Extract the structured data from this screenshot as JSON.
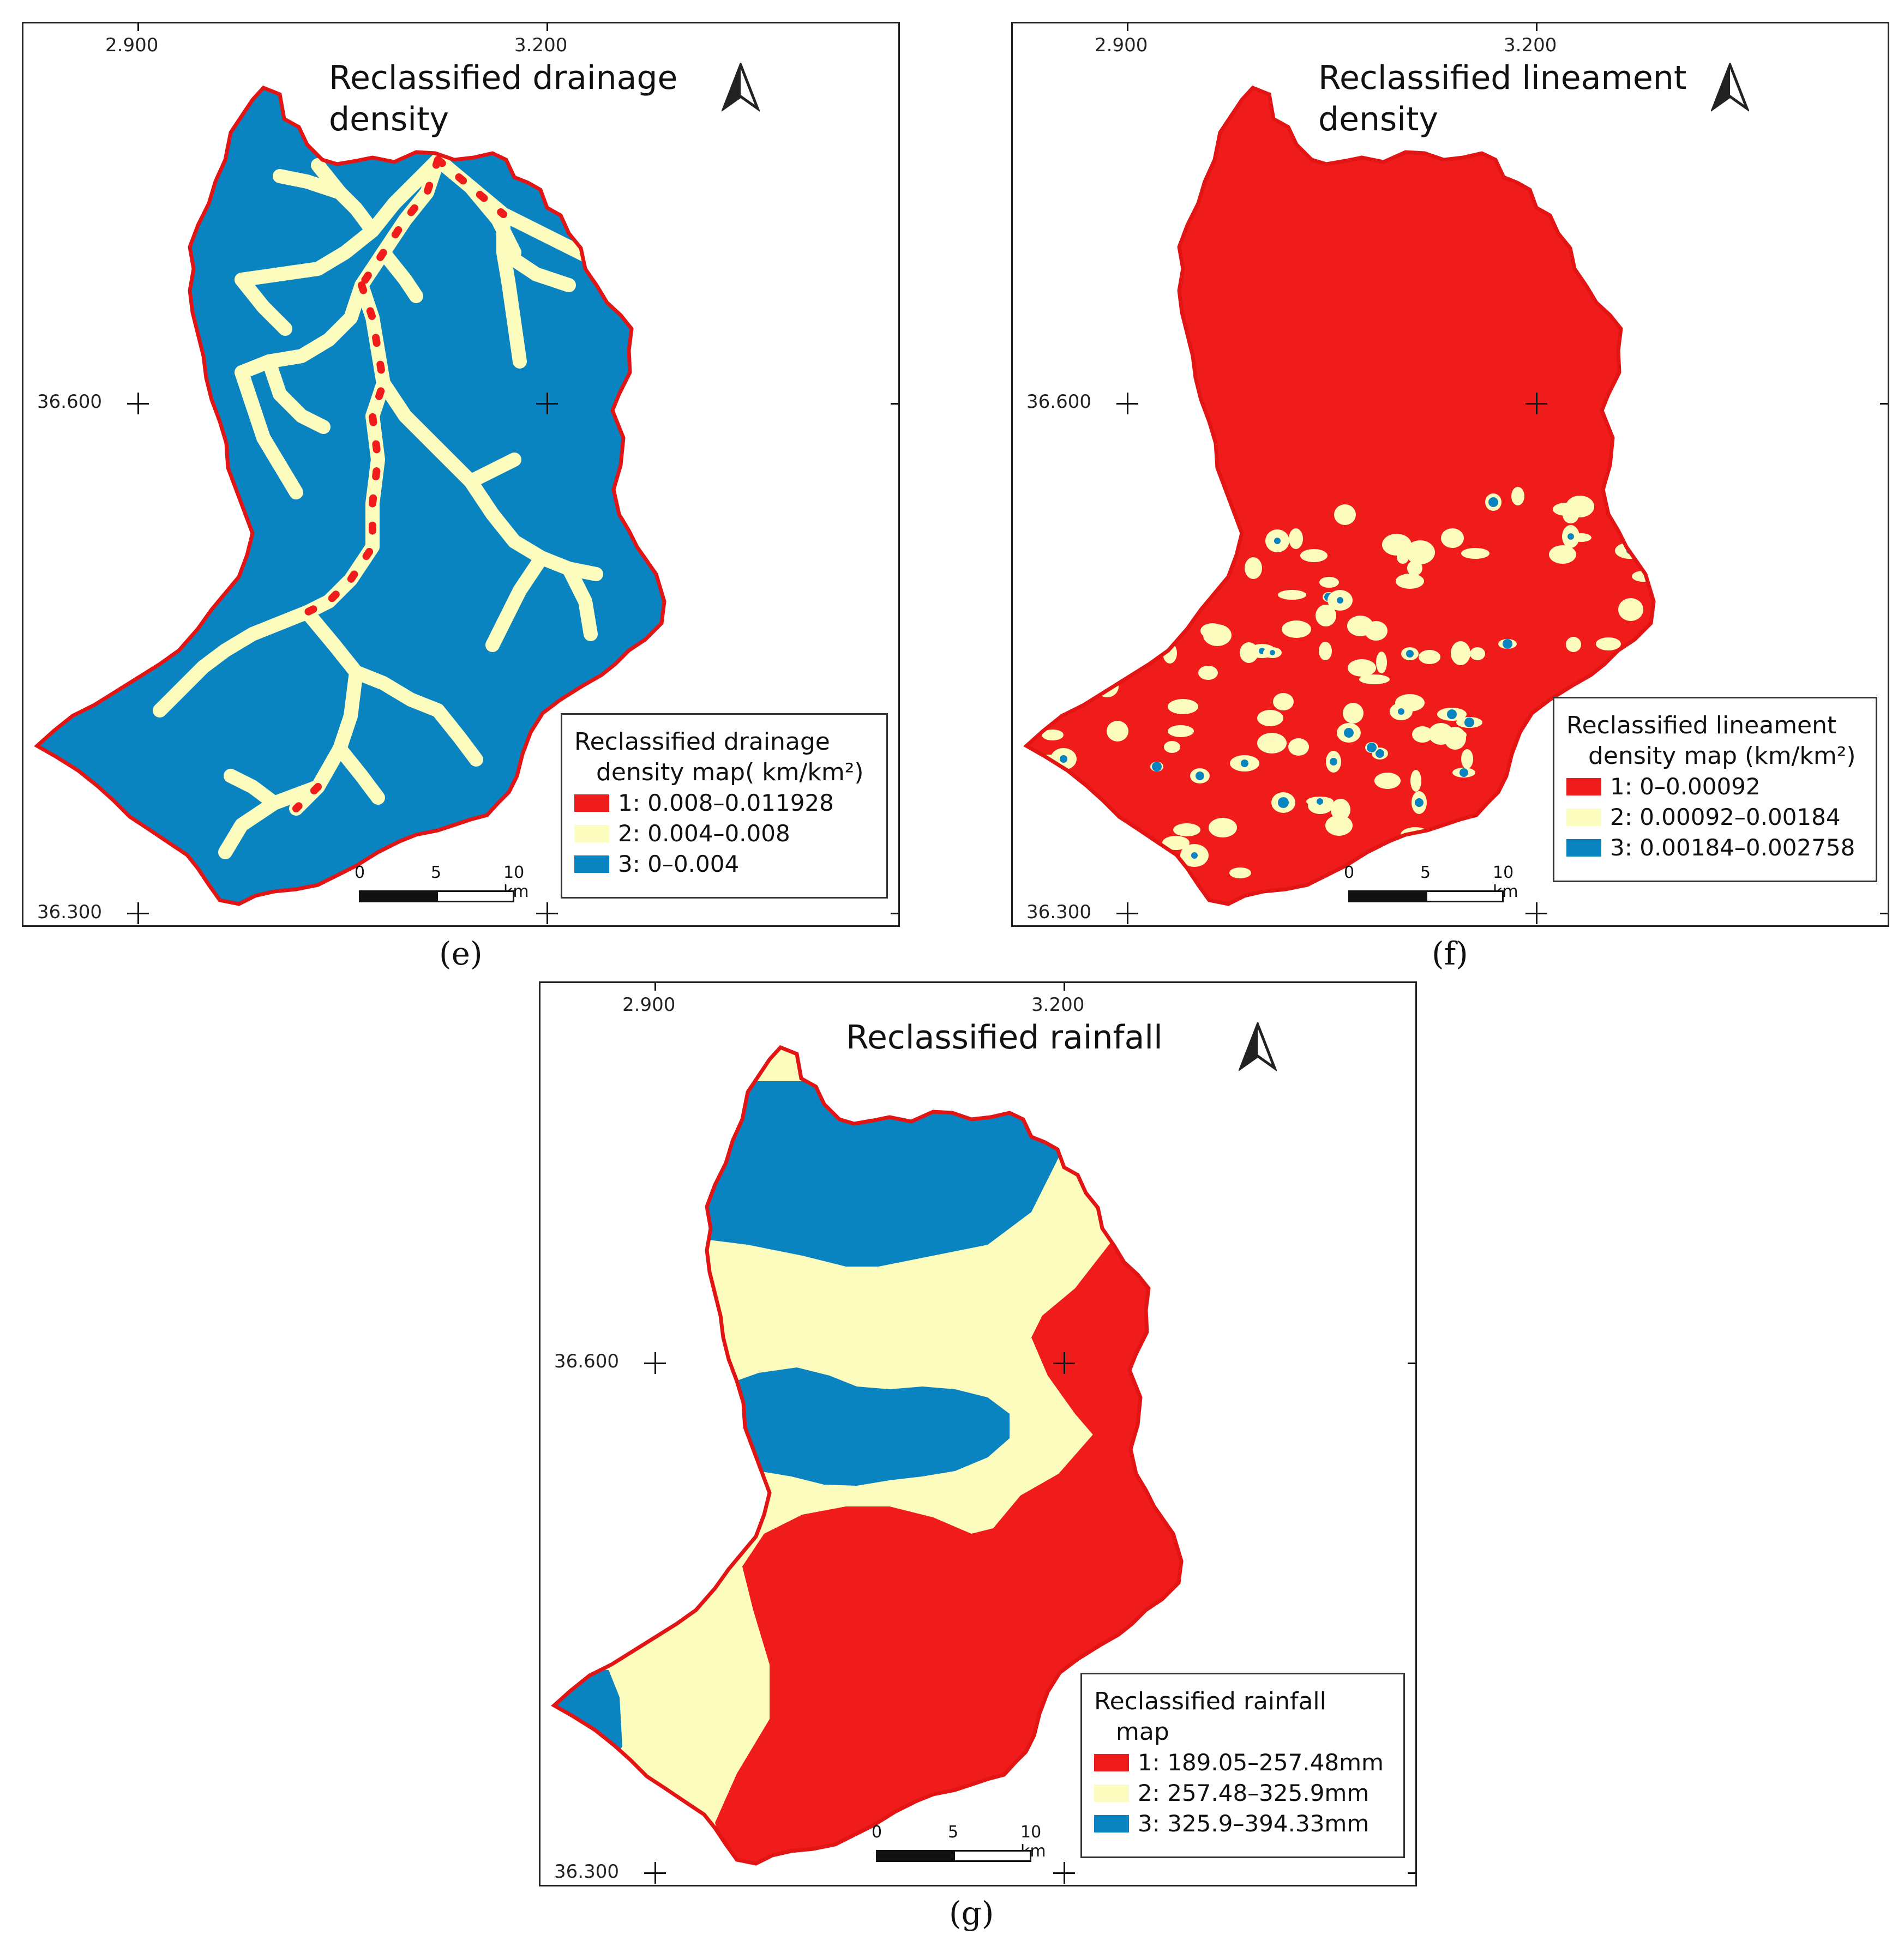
{
  "colors": {
    "class1": "#f01b1b",
    "class2": "#fdfcbf",
    "class3": "#0a84c1",
    "boundary": "#e21414"
  },
  "panels": {
    "e": {
      "title_line1": "Reclassified drainage",
      "title_line2": "density",
      "tick_x1": "2.900",
      "tick_x2": "3.200",
      "tick_y1": "36.600",
      "tick_y2": "36.300",
      "legend_title1": "Reclassified drainage",
      "legend_title2": "density map( km/km²)",
      "legend": [
        "1: 0.008–0.011928",
        "2: 0.004–0.008",
        "3: 0–0.004"
      ],
      "scale": [
        "0",
        "5",
        "10 km"
      ],
      "caption": "(e)"
    },
    "f": {
      "title_line1": "Reclassified lineament",
      "title_line2": "density",
      "tick_x1": "2.900",
      "tick_x2": "3.200",
      "tick_y1": "36.600",
      "tick_y2": "36.300",
      "legend_title1": "Reclassified lineament",
      "legend_title2": "density map (km/km²)",
      "legend": [
        "1: 0–0.00092",
        "2: 0.00092–0.00184",
        "3: 0.00184–0.002758"
      ],
      "scale": [
        "0",
        "5",
        "10 km"
      ],
      "caption": "(f)"
    },
    "g": {
      "title_line1": "Reclassified rainfall",
      "tick_x1": "2.900",
      "tick_x2": "3.200",
      "tick_y1": "36.600",
      "tick_y2": "36.300",
      "legend_title1": "Reclassified rainfall",
      "legend_title2": "map",
      "legend": [
        "1: 189.05–257.48mm",
        "2: 257.48–325.9mm",
        "3: 325.9–394.33mm"
      ],
      "scale": [
        "0",
        "5",
        "10 km"
      ],
      "caption": "(g)"
    }
  }
}
